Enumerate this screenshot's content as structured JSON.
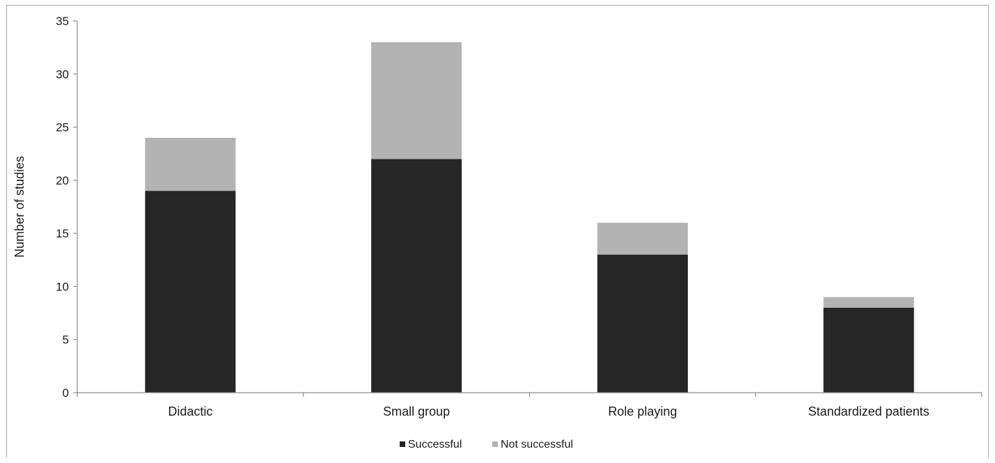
{
  "chart_data": {
    "type": "bar",
    "stacked": true,
    "title": "",
    "xlabel": "",
    "ylabel": "Number of studies",
    "ylim": [
      0,
      35
    ],
    "yticks": [
      0,
      5,
      10,
      15,
      20,
      25,
      30,
      35
    ],
    "grid": false,
    "legend_position": "bottom",
    "categories": [
      "Didactic",
      "Small group",
      "Role playing",
      "Standardized patients"
    ],
    "series": [
      {
        "name": "Successful",
        "color": "#262626",
        "values": [
          19,
          22,
          13,
          8
        ]
      },
      {
        "name": "Not successful",
        "color": "#b3b3b3",
        "values": [
          5,
          11,
          3,
          1
        ]
      }
    ]
  }
}
